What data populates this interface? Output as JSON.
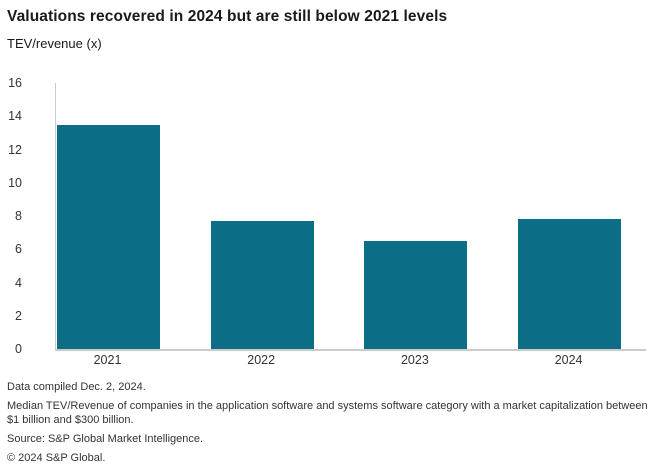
{
  "header": {
    "title": "Valuations recovered in 2024 but are still below 2021 levels",
    "subtitle": "TEV/revenue (x)"
  },
  "chart_data": {
    "type": "bar",
    "categories": [
      "2021",
      "2022",
      "2023",
      "2024"
    ],
    "values": [
      13.5,
      7.7,
      6.5,
      7.8
    ],
    "title": "Valuations recovered in 2024 but are still below 2021 levels",
    "xlabel": "",
    "ylabel": "TEV/revenue (x)",
    "ylim": [
      0,
      16
    ],
    "yticks": [
      0,
      2,
      4,
      6,
      8,
      10,
      12,
      14,
      16
    ],
    "bar_color": "#0b6e86",
    "axis_color": "#cbcbcb",
    "grid": false,
    "legend": "none"
  },
  "footer": {
    "lines": [
      "Data compiled Dec. 2, 2024.",
      "Median TEV/Revenue of companies in the application software and systems software category with a market capitalization between $1 billion and $300 billion.",
      "Source: S&P Global Market Intelligence.",
      "© 2024 S&P Global."
    ]
  }
}
